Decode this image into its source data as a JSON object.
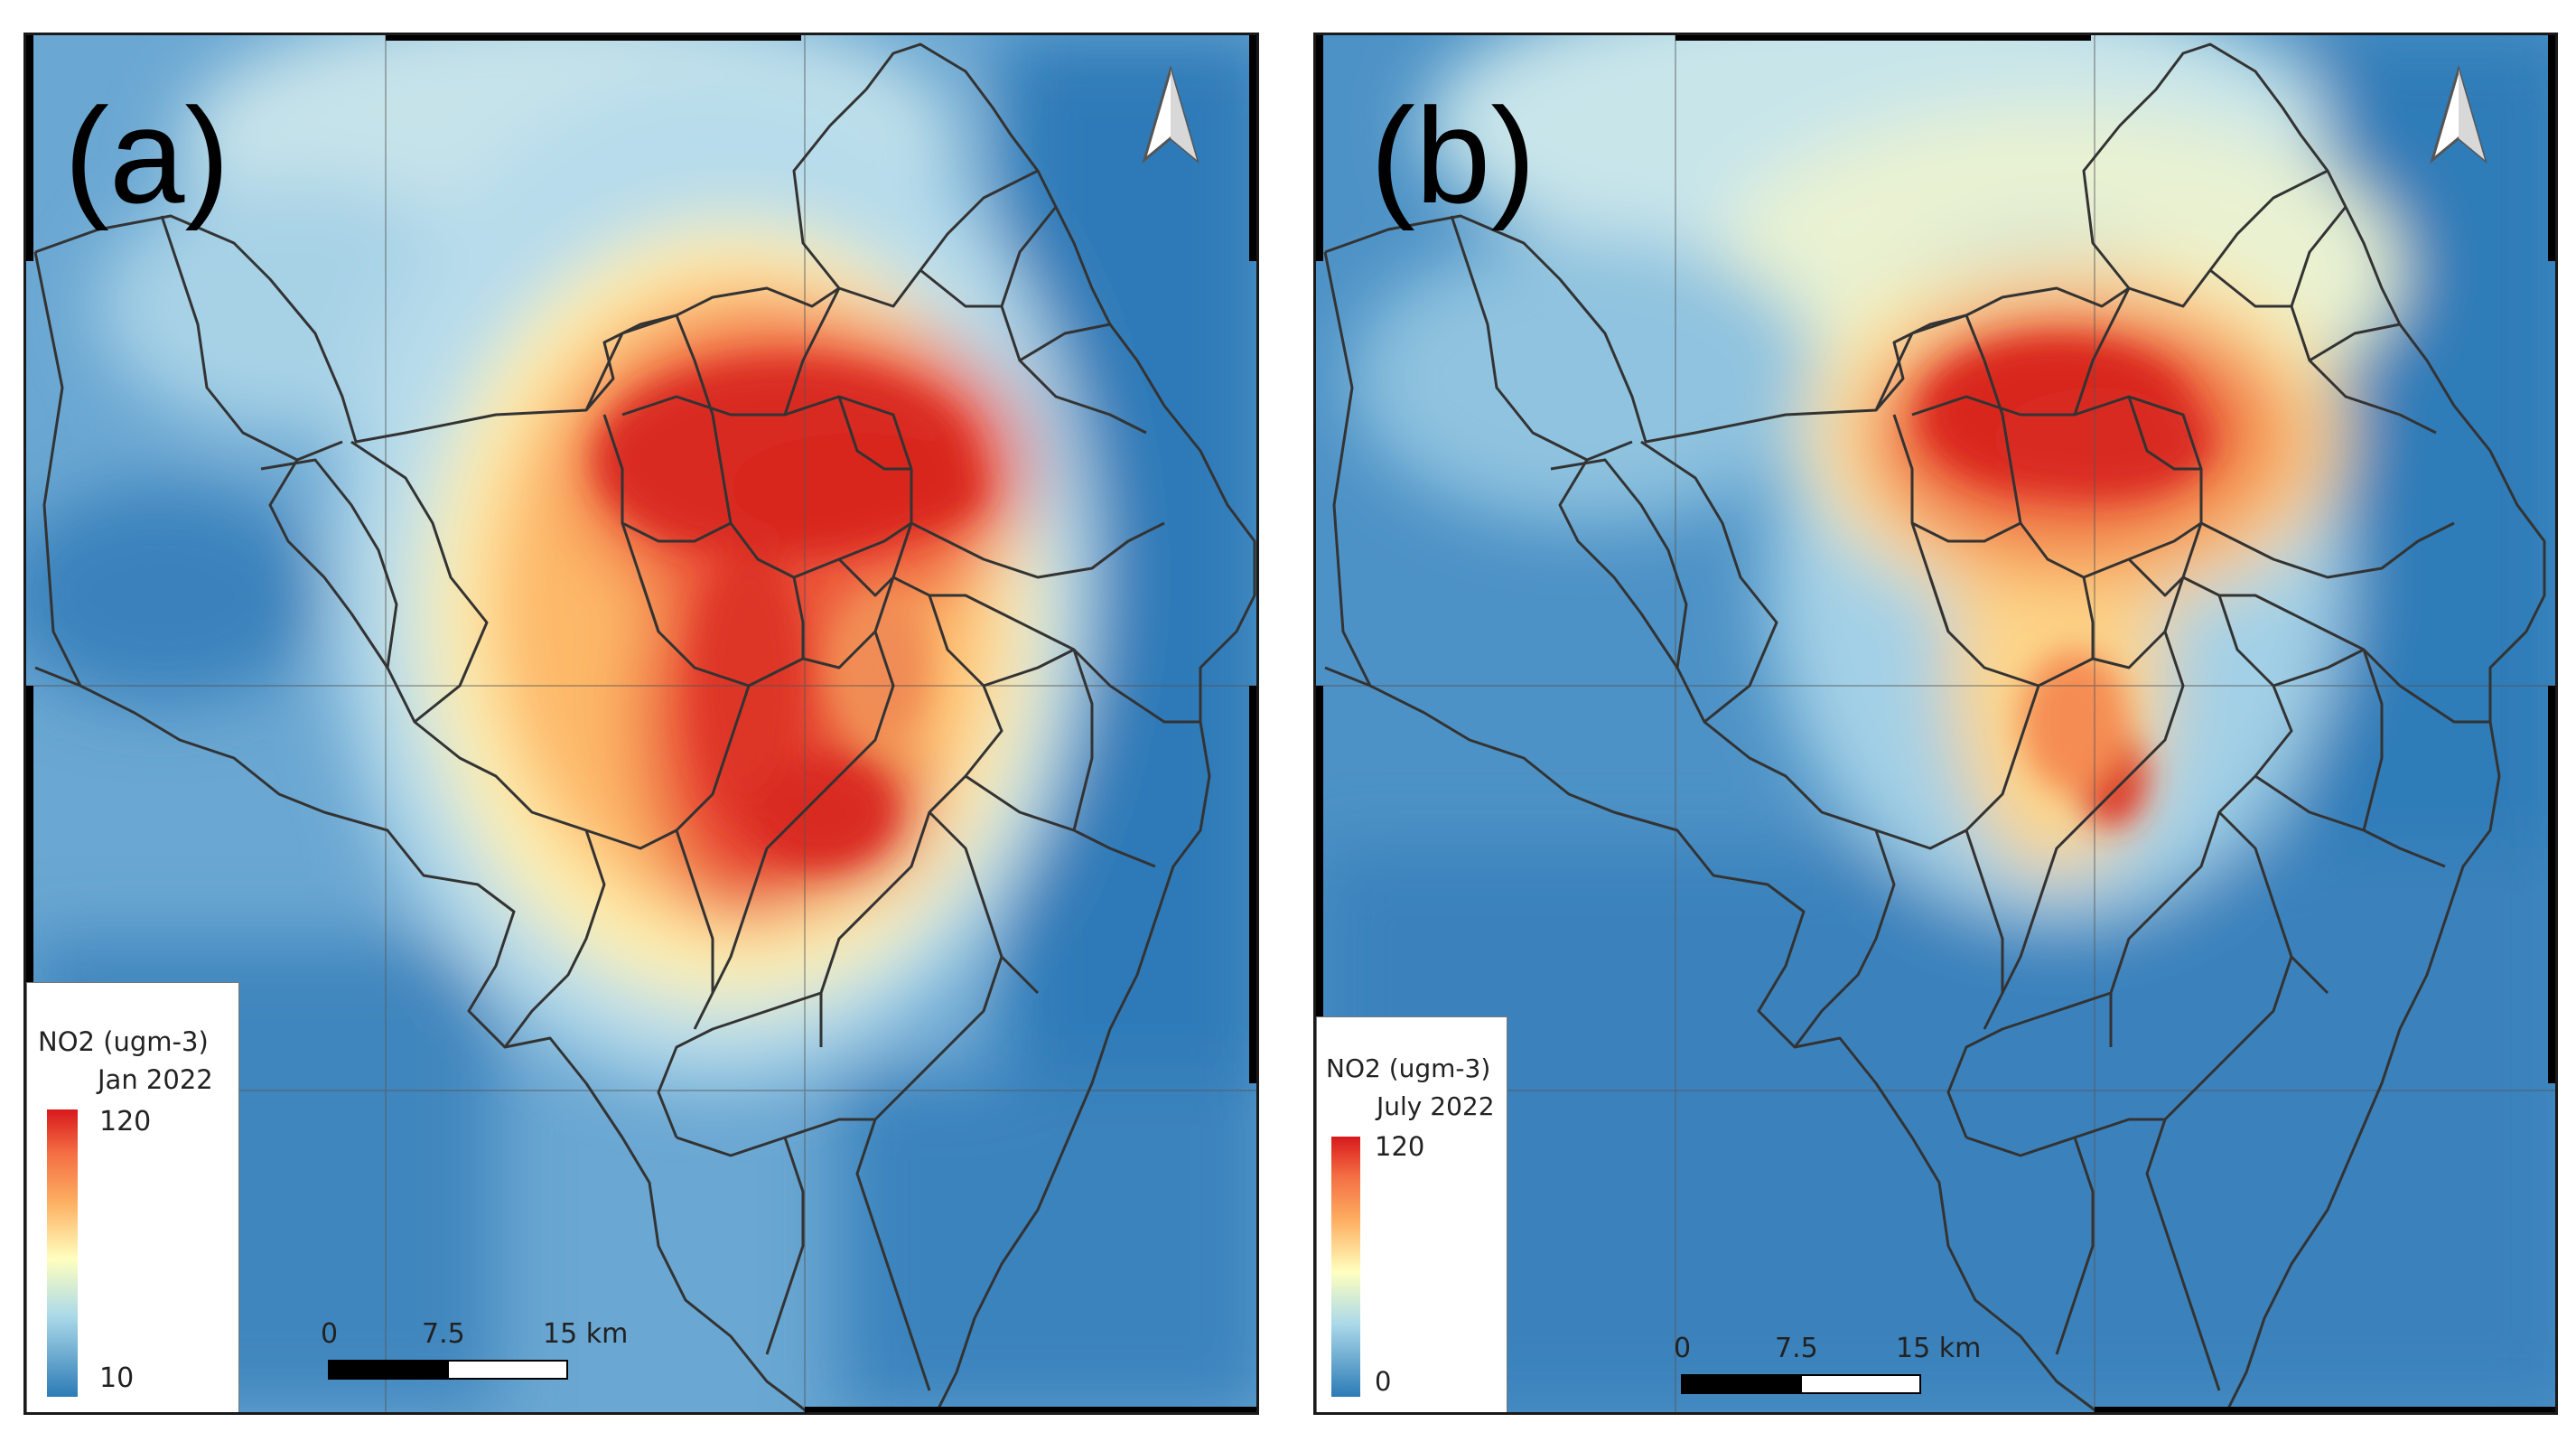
{
  "panels": [
    {
      "label": "(a)",
      "legend": {
        "title": "NO2 (ugm-3)",
        "period": "Jan 2022",
        "max": "120",
        "min": "10"
      },
      "scale": {
        "ticks": [
          "0",
          "7.5",
          "15 km"
        ]
      }
    },
    {
      "label": "(b)",
      "legend": {
        "title": "NO2 (ugm-3)",
        "period": "July 2022",
        "max": "120",
        "min": "0"
      },
      "scale": {
        "ticks": [
          "0",
          "7.5",
          "15 km"
        ]
      }
    }
  ],
  "colors": {
    "high": "#d7191c",
    "mid_high": "#fdae61",
    "mid": "#ffffbf",
    "mid_low": "#abd9e9",
    "low": "#2c7bb6",
    "boundary": "#333333"
  },
  "icons": {
    "north_arrow": "north-arrow-icon"
  }
}
